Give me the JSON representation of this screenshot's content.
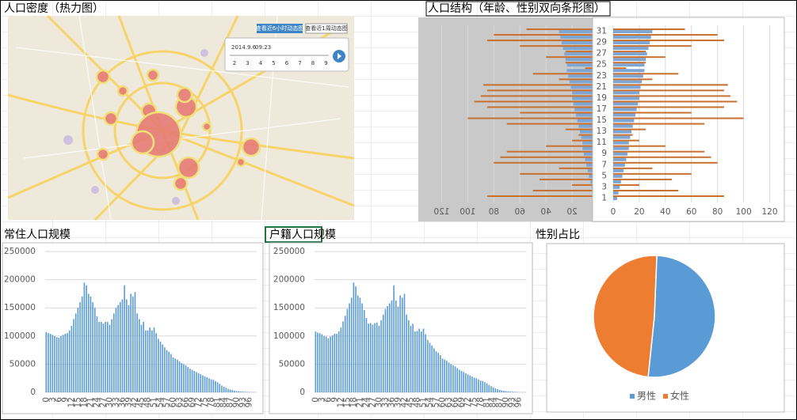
{
  "map": {
    "title": "人口密度（热力图）",
    "buttons": [
      "查看近6小时动态图",
      "查看近1周动态图"
    ],
    "date": "2014.9.6",
    "time": "09:23",
    "slider_ticks": [
      "2",
      "3",
      "4",
      "5",
      "6",
      "7",
      "8",
      "9"
    ]
  },
  "chart_data": [
    {
      "type": "hbar",
      "title": "人口结构（年龄、性别双向条形图）",
      "categories": [
        1,
        null,
        3,
        null,
        5,
        null,
        7,
        null,
        9,
        null,
        11,
        null,
        13,
        null,
        15,
        null,
        17,
        null,
        19,
        null,
        21,
        null,
        23,
        null,
        25,
        null,
        27,
        null,
        29,
        null,
        31
      ],
      "series": [
        {
          "color": "#7ea6d4",
          "values": [
            3,
            4,
            5,
            6,
            7,
            8,
            9,
            10,
            11,
            12,
            12,
            13,
            14,
            15,
            16,
            17,
            18,
            19,
            20,
            20,
            21,
            22,
            23,
            24,
            24,
            25,
            26,
            27,
            28,
            29,
            30
          ]
        },
        {
          "color": "#c8702f",
          "values": [
            85,
            50,
            20,
            45,
            60,
            30,
            80,
            75,
            70,
            40,
            20,
            15,
            25,
            70,
            100,
            60,
            85,
            95,
            90,
            85,
            88,
            30,
            50,
            10,
            25,
            40,
            25,
            60,
            85,
            80,
            55
          ]
        }
      ],
      "xlim": [
        0,
        130
      ],
      "xticks": [
        0,
        20,
        40,
        60,
        80,
        100,
        120
      ],
      "grid": true
    },
    {
      "type": "bar",
      "title": "常住人口规模",
      "categories": [
        0,
        null,
        null,
        3,
        null,
        null,
        6,
        null,
        null,
        9,
        null,
        null,
        12,
        null,
        null,
        15,
        null,
        null,
        18,
        null,
        null,
        21,
        null,
        null,
        24,
        null,
        null,
        27,
        null,
        null,
        30,
        null,
        null,
        33,
        null,
        null,
        36,
        null,
        null,
        39,
        null,
        null,
        42,
        null,
        null,
        45,
        null,
        null,
        48,
        null,
        null,
        51,
        null,
        null,
        54,
        null,
        null,
        57,
        null,
        null,
        60,
        null,
        null,
        63,
        null,
        null,
        66,
        null,
        null,
        69,
        null,
        null,
        72,
        null,
        null,
        75,
        null,
        null,
        78,
        null,
        null,
        81,
        null,
        null,
        84,
        null,
        null,
        87,
        null,
        null,
        90,
        null,
        null,
        93,
        null,
        null,
        96,
        null,
        null,
        null
      ],
      "values": [
        107000,
        105000,
        104000,
        102000,
        100000,
        98000,
        97000,
        100000,
        102000,
        104000,
        105000,
        110000,
        118000,
        130000,
        140000,
        150000,
        160000,
        170000,
        195000,
        190000,
        175000,
        170000,
        160000,
        150000,
        135000,
        125000,
        125000,
        122000,
        125000,
        125000,
        120000,
        130000,
        140000,
        150000,
        155000,
        160000,
        165000,
        190000,
        165000,
        155000,
        175000,
        170000,
        178000,
        140000,
        130000,
        120000,
        125000,
        110000,
        110000,
        115000,
        110000,
        115000,
        105000,
        95000,
        90000,
        85000,
        80000,
        75000,
        72000,
        68000,
        62000,
        60000,
        58000,
        55000,
        52000,
        50000,
        48000,
        45000,
        42000,
        40000,
        38000,
        36000,
        34000,
        32000,
        30000,
        28000,
        27000,
        25000,
        23000,
        22000,
        20000,
        18000,
        15000,
        12000,
        10000,
        8000,
        6000,
        5000,
        4000,
        3000,
        2500,
        2000,
        1500,
        1200,
        1000,
        800,
        600,
        500,
        400,
        300
      ],
      "color": "#5b9bd5",
      "ylim": [
        0,
        250000
      ],
      "yticks": [
        0,
        50000,
        100000,
        150000,
        200000,
        250000
      ],
      "grid": true
    },
    {
      "type": "bar",
      "title": "户籍人口规模",
      "categories": [
        0,
        null,
        null,
        3,
        null,
        null,
        6,
        null,
        null,
        9,
        null,
        null,
        12,
        null,
        null,
        15,
        null,
        null,
        18,
        null,
        null,
        21,
        null,
        null,
        24,
        null,
        null,
        27,
        null,
        null,
        30,
        null,
        null,
        33,
        null,
        null,
        36,
        null,
        null,
        39,
        null,
        null,
        42,
        null,
        null,
        45,
        null,
        null,
        48,
        null,
        null,
        51,
        null,
        null,
        54,
        null,
        null,
        57,
        null,
        null,
        60,
        null,
        null,
        63,
        null,
        null,
        66,
        null,
        null,
        69,
        null,
        null,
        72,
        null,
        null,
        75,
        null,
        null,
        78,
        null,
        null,
        81,
        null,
        null,
        84,
        null,
        null,
        87,
        null,
        null,
        90,
        null,
        null,
        93,
        null,
        null,
        96,
        null,
        null,
        null
      ],
      "values": [
        108000,
        106000,
        105000,
        103000,
        100000,
        99000,
        96000,
        99000,
        101000,
        104000,
        104000,
        108000,
        115000,
        126000,
        136000,
        148000,
        158000,
        168000,
        195000,
        188000,
        172000,
        168000,
        158000,
        146000,
        132000,
        122000,
        123000,
        120000,
        123000,
        124000,
        118000,
        128000,
        138000,
        148000,
        153000,
        158000,
        163000,
        190000,
        163000,
        152000,
        172000,
        168000,
        175000,
        138000,
        128000,
        118000,
        122000,
        108000,
        109000,
        113000,
        108000,
        113000,
        103000,
        93000,
        88000,
        83000,
        78000,
        73000,
        70000,
        66000,
        60000,
        58000,
        56000,
        53000,
        50000,
        48000,
        46000,
        43000,
        40000,
        38000,
        36000,
        34000,
        32000,
        30000,
        28000,
        26000,
        25000,
        23000,
        21000,
        20000,
        18000,
        16000,
        13000,
        11000,
        9000,
        7000,
        5500,
        4500,
        3500,
        2800,
        2200,
        1800,
        1400,
        1100,
        900,
        700,
        550,
        450,
        350,
        250
      ],
      "color": "#5b9bd5",
      "ylim": [
        0,
        250000
      ],
      "yticks": [
        0,
        50000,
        100000,
        150000,
        200000,
        250000
      ],
      "grid": true
    },
    {
      "type": "pie",
      "title": "性别占比",
      "categories": [
        "男性",
        "女性"
      ],
      "values": [
        51,
        49
      ],
      "colors": [
        "#5b9bd5",
        "#ed7d31"
      ],
      "legend": "bottom"
    }
  ]
}
